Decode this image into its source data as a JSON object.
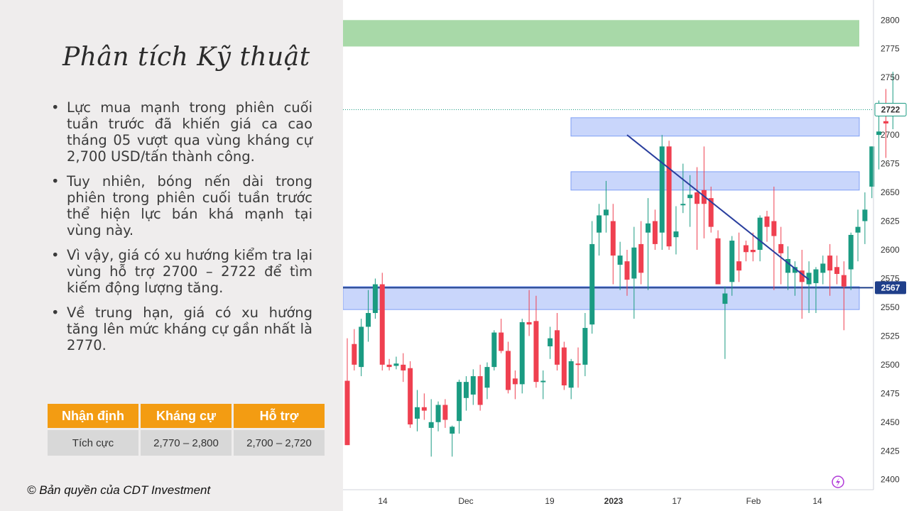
{
  "slide": {
    "title": "Phân tích Kỹ thuật",
    "bullets": [
      "Lực mua mạnh trong phiên cuối tuần trước đã khiến giá ca cao tháng 05 vượt qua vùng kháng cự 2,700 USD/tấn thành công.",
      "Tuy nhiên, bóng nến dài trong phiên trong phiên cuối tuần trước thể hiện lực bán khá mạnh tại vùng này.",
      "Vì vậy, giá có xu hướng kiểm tra lại vùng hỗ trợ 2700 – 2722 để tìm kiếm động lượng tăng.",
      "Về trung hạn, giá có xu hướng tăng lên mức kháng cự gần nhất là 2770."
    ],
    "table": {
      "headers": [
        "Nhận định",
        "Kháng cự",
        "Hỗ trợ"
      ],
      "row": [
        "Tích cực",
        "2,770 – 2,800",
        "2,700 – 2,720"
      ]
    },
    "copyright": "© Bản quyền của CDT Investment"
  },
  "colors": {
    "up": "#1a9b82",
    "down": "#ef4050",
    "zone": "#c9d6fb",
    "zone_border": "#7f9ff5",
    "target_zone": "#a8d9a8",
    "trendline": "#2a3f9e",
    "badge": "#1f3f8a",
    "accent": "#f39c12"
  },
  "chart_data": {
    "type": "candlestick",
    "y_ticks": [
      2400,
      2425,
      2450,
      2475,
      2500,
      2525,
      2550,
      2575,
      2600,
      2625,
      2650,
      2675,
      2700,
      2725,
      2750,
      2775,
      2800
    ],
    "y_range": [
      2385,
      2815
    ],
    "x_ticks": [
      "14",
      "Dec",
      "19",
      "2023",
      "17",
      "Feb",
      "14"
    ],
    "price_labels": [
      {
        "value": 2722,
        "text": "2722",
        "style": "outline"
      },
      {
        "value": 2567,
        "text": "2567",
        "style": "filled"
      }
    ],
    "horizontal_line": 2567,
    "zones": [
      {
        "role": "target",
        "low": 2777,
        "high": 2800
      },
      {
        "role": "resistance",
        "low": 2699,
        "high": 2715
      },
      {
        "role": "resistance",
        "low": 2652,
        "high": 2668
      },
      {
        "role": "support",
        "low": 2548,
        "high": 2568
      }
    ],
    "trendline": {
      "from": {
        "bar": 40,
        "value": 2700
      },
      "to": {
        "bar": 66,
        "value": 2574
      }
    },
    "candles": [
      [
        2486,
        2523,
        2430,
        2430
      ],
      [
        2518,
        2531,
        2495,
        2500
      ],
      [
        2498,
        2540,
        2490,
        2533
      ],
      [
        2533,
        2565,
        2520,
        2545
      ],
      [
        2545,
        2575,
        2540,
        2570
      ],
      [
        2570,
        2580,
        2495,
        2500
      ],
      [
        2500,
        2505,
        2495,
        2498
      ],
      [
        2499,
        2507,
        2496,
        2501
      ],
      [
        2500,
        2510,
        2485,
        2495
      ],
      [
        2497,
        2503,
        2445,
        2448
      ],
      [
        2453,
        2478,
        2442,
        2463
      ],
      [
        2463,
        2475,
        2452,
        2460
      ],
      [
        2445,
        2470,
        2420,
        2450
      ],
      [
        2450,
        2468,
        2442,
        2465
      ],
      [
        2465,
        2470,
        2445,
        2452
      ],
      [
        2440,
        2447,
        2420,
        2446
      ],
      [
        2451,
        2487,
        2440,
        2485
      ],
      [
        2471,
        2490,
        2460,
        2485
      ],
      [
        2474,
        2496,
        2465,
        2490
      ],
      [
        2490,
        2500,
        2460,
        2465
      ],
      [
        2480,
        2502,
        2470,
        2498
      ],
      [
        2498,
        2530,
        2495,
        2528
      ],
      [
        2528,
        2540,
        2510,
        2512
      ],
      [
        2512,
        2520,
        2475,
        2478
      ],
      [
        2488,
        2495,
        2470,
        2483
      ],
      [
        2483,
        2540,
        2475,
        2537
      ],
      [
        2537,
        2565,
        2525,
        2535
      ],
      [
        2538,
        2560,
        2480,
        2485
      ],
      [
        2485,
        2495,
        2470,
        2486
      ],
      [
        2516,
        2533,
        2505,
        2523
      ],
      [
        2530,
        2545,
        2495,
        2500
      ],
      [
        2515,
        2520,
        2478,
        2482
      ],
      [
        2480,
        2505,
        2470,
        2503
      ],
      [
        2501,
        2515,
        2480,
        2500
      ],
      [
        2500,
        2545,
        2490,
        2532
      ],
      [
        2535,
        2625,
        2527,
        2605
      ],
      [
        2615,
        2640,
        2595,
        2630
      ],
      [
        2630,
        2660,
        2615,
        2635
      ],
      [
        2625,
        2640,
        2570,
        2595
      ],
      [
        2587,
        2607,
        2565,
        2595
      ],
      [
        2590,
        2600,
        2560,
        2574
      ],
      [
        2575,
        2620,
        2540,
        2602
      ],
      [
        2605,
        2625,
        2570,
        2580
      ],
      [
        2615,
        2645,
        2565,
        2623
      ],
      [
        2625,
        2635,
        2600,
        2605
      ],
      [
        2615,
        2700,
        2600,
        2690
      ],
      [
        2690,
        2695,
        2600,
        2603
      ],
      [
        2611,
        2638,
        2596,
        2616
      ],
      [
        2640,
        2675,
        2632,
        2640
      ],
      [
        2645,
        2665,
        2620,
        2648
      ],
      [
        2650,
        2672,
        2600,
        2640
      ],
      [
        2652,
        2690,
        2610,
        2640
      ],
      [
        2645,
        2655,
        2615,
        2620
      ],
      [
        2610,
        2617,
        2570,
        2570
      ],
      [
        2553,
        2568,
        2505,
        2562
      ],
      [
        2572,
        2612,
        2560,
        2608
      ],
      [
        2590,
        2615,
        2572,
        2582
      ],
      [
        2604,
        2608,
        2590,
        2598
      ],
      [
        2600,
        2615,
        2590,
        2598
      ],
      [
        2600,
        2630,
        2590,
        2628
      ],
      [
        2629,
        2634,
        2607,
        2620
      ],
      [
        2625,
        2655,
        2565,
        2612
      ],
      [
        2605,
        2620,
        2570,
        2597
      ],
      [
        2580,
        2603,
        2565,
        2592
      ],
      [
        2580,
        2590,
        2560,
        2585
      ],
      [
        2582,
        2600,
        2540,
        2572
      ],
      [
        2570,
        2590,
        2545,
        2580
      ],
      [
        2571,
        2585,
        2545,
        2583
      ],
      [
        2580,
        2595,
        2570,
        2588
      ],
      [
        2595,
        2605,
        2560,
        2582
      ],
      [
        2585,
        2595,
        2570,
        2579
      ],
      [
        2578,
        2590,
        2530,
        2568
      ],
      [
        2583,
        2615,
        2565,
        2613
      ],
      [
        2615,
        2635,
        2590,
        2620
      ],
      [
        2625,
        2650,
        2605,
        2635
      ],
      [
        2655,
        2690,
        2645,
        2690
      ],
      [
        2700,
        2730,
        2670,
        2703
      ],
      [
        2712,
        2740,
        2680,
        2710
      ],
      [
        2722,
        2755,
        2705,
        2722
      ]
    ]
  }
}
